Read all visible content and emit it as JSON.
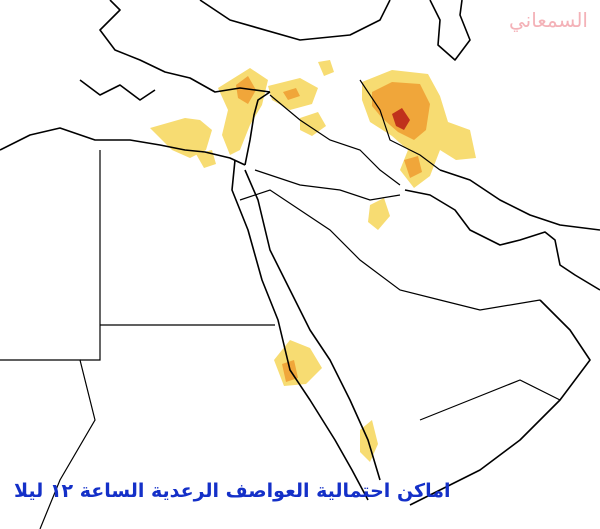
{
  "watermark": "السمعاني",
  "caption": "اماكن احتمالية العواصف الرعدية الساعة ١٢ ليلا"
}
